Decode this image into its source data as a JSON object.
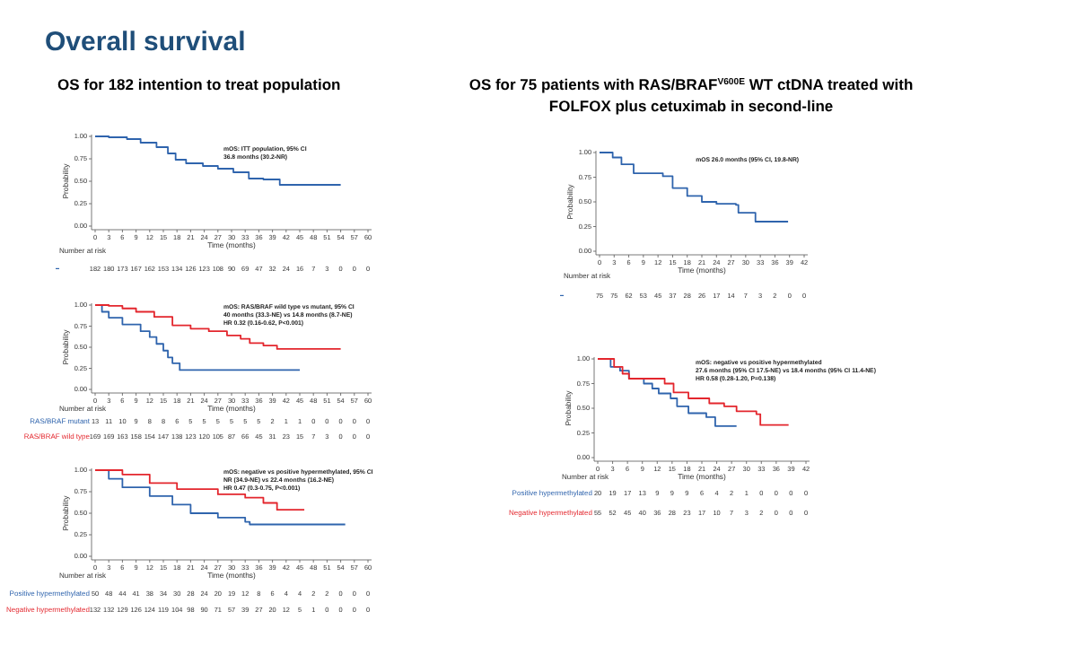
{
  "chart_data": [
    {
      "type": "step",
      "title": "Overall survival",
      "subtitle": "OS for 182 intention to treat population",
      "xlabel": "Time (months)",
      "ylabel": "Probability",
      "xlim": [
        0,
        60
      ],
      "xticks": [
        0,
        3,
        6,
        9,
        12,
        15,
        18,
        21,
        24,
        27,
        30,
        33,
        36,
        39,
        42,
        45,
        48,
        51,
        54,
        57,
        60
      ],
      "ylim": [
        0,
        1
      ],
      "yticks": [
        {
          "value": 0,
          "label": "0.00"
        },
        {
          "value": 0.25,
          "label": "0.25"
        },
        {
          "value": 0.5,
          "label": "0.50"
        },
        {
          "value": 0.75,
          "label": "0.75"
        },
        {
          "value": 1,
          "label": "1.00"
        }
      ],
      "grid": false,
      "legend": false,
      "series": [
        {
          "color": "#2f64ad",
          "x": [
            0,
            3,
            7,
            10,
            13.5,
            16,
            17.7,
            20,
            23.7,
            27,
            30.4,
            33.8,
            37,
            40.6,
            54
          ],
          "values": [
            1,
            0.99,
            0.97,
            0.93,
            0.88,
            0.81,
            0.74,
            0.7,
            0.67,
            0.64,
            0.6,
            0.53,
            0.52,
            0.46,
            0.46
          ]
        }
      ],
      "annotations": [
        "mOS: ITT population, 95% CI",
        "36.8 months (30.2-NR)",
        "Number at risk",
        "182 180 173 167 162 153 134 126 123 108 90 69 47 32 24 16 7 3 0 0 0"
      ]
    },
    {
      "type": "step",
      "xlabel": "Time (months)",
      "ylabel": "Probability",
      "xlim": [
        0,
        60
      ],
      "xticks": [
        0,
        3,
        6,
        9,
        12,
        15,
        18,
        21,
        24,
        27,
        30,
        33,
        36,
        39,
        42,
        45,
        48,
        51,
        54,
        57,
        60
      ],
      "ylim": [
        0,
        1
      ],
      "yticks": [
        {
          "value": 0,
          "label": "0.00"
        },
        {
          "value": 0.25,
          "label": "0.25"
        },
        {
          "value": 0.5,
          "label": "0.50"
        },
        {
          "value": 0.75,
          "label": "0.75"
        },
        {
          "value": 1,
          "label": "1.00"
        }
      ],
      "grid": false,
      "legend": false,
      "series": [
        {
          "name": "RAS/BRAF mutant",
          "color": "#2f64ad",
          "x": [
            0,
            1.5,
            3,
            6,
            10,
            12,
            13.5,
            15,
            16,
            17,
            18.6,
            45
          ],
          "values": [
            1,
            0.92,
            0.85,
            0.77,
            0.69,
            0.62,
            0.54,
            0.46,
            0.38,
            0.31,
            0.23,
            0.23
          ]
        },
        {
          "name": "RAS/BRAF wild type",
          "color": "#e3262d",
          "x": [
            0,
            3,
            6,
            9,
            13,
            17,
            21,
            25,
            29,
            32,
            34,
            37,
            40,
            54
          ],
          "values": [
            1,
            0.99,
            0.96,
            0.92,
            0.86,
            0.76,
            0.72,
            0.69,
            0.64,
            0.6,
            0.55,
            0.52,
            0.48,
            0.48
          ]
        }
      ],
      "annotations": [
        "mOS: RAS/BRAF wild type vs mutant, 95% CI",
        "40 months (33.3-NE) vs 14.8 months (8.7-NE)",
        "HR 0.32 (0.16-0.62, P<0.001)",
        "Number at risk",
        "13 11 10 9 8 8 6 5 5 5 5 5 5 2 1 1 0 0 0 0 0",
        "169 169 163 158 154 147 138 123 120 105 87 66 45 31 23 15 7 3 0 0 0"
      ]
    },
    {
      "type": "step",
      "xlabel": "Time (months)",
      "ylabel": "Probability",
      "xlim": [
        0,
        60
      ],
      "xticks": [
        0,
        3,
        6,
        9,
        12,
        15,
        18,
        21,
        24,
        27,
        30,
        33,
        36,
        39,
        42,
        45,
        48,
        51,
        54,
        57,
        60
      ],
      "ylim": [
        0,
        1
      ],
      "yticks": [
        {
          "value": 0,
          "label": "0.00"
        },
        {
          "value": 0.25,
          "label": "0.25"
        },
        {
          "value": 0.5,
          "label": "0.50"
        },
        {
          "value": 0.75,
          "label": "0.75"
        },
        {
          "value": 1,
          "label": "1.00"
        }
      ],
      "grid": false,
      "legend": false,
      "series": [
        {
          "name": "Positive hypermethylated",
          "color": "#2f64ad",
          "x": [
            0,
            3,
            6,
            12,
            17,
            21,
            27,
            33,
            34,
            55
          ],
          "values": [
            1,
            0.9,
            0.8,
            0.7,
            0.6,
            0.5,
            0.45,
            0.4,
            0.37,
            0.37
          ]
        },
        {
          "name": "Negative hypermethylated",
          "color": "#e3262d",
          "x": [
            0,
            6,
            12,
            18,
            27,
            33,
            37,
            40,
            46
          ],
          "values": [
            1,
            0.95,
            0.85,
            0.78,
            0.72,
            0.68,
            0.62,
            0.54,
            0.54
          ]
        }
      ],
      "annotations": [
        "mOS: negative vs positive hypermethylated, 95% CI",
        "NR (34.9-NE) vs 22.4 months (16.2-NE)",
        "HR 0.47 (0.3-0.75, P<0.001)",
        "Number at risk",
        "50 48 44 41 38 34 30 28 24 20 19 12 8 6 4 4 2 2 0 0 0",
        "132 132 129 126 124 119 104 98 90 71 57 39 27 20 12 5 1 0 0 0 0"
      ]
    },
    {
      "type": "step",
      "subtitle": "OS for 75 patients with RAS/BRAF$^{V600E}$ WT ctDNA treated with FOLFOX plus cetuximab in second-line",
      "xlabel": "Time (months)",
      "ylabel": "Probability",
      "xlim": [
        0,
        42
      ],
      "xticks": [
        0,
        3,
        6,
        9,
        12,
        15,
        18,
        21,
        24,
        27,
        30,
        33,
        36,
        39,
        42
      ],
      "ylim": [
        0,
        1
      ],
      "yticks": [
        {
          "value": 0,
          "label": "0.00"
        },
        {
          "value": 0.25,
          "label": "0.25"
        },
        {
          "value": 0.5,
          "label": "0.50"
        },
        {
          "value": 0.75,
          "label": "0.75"
        },
        {
          "value": 1,
          "label": "1.00"
        }
      ],
      "grid": false,
      "legend": false,
      "series": [
        {
          "color": "#2f64ad",
          "x": [
            0,
            1.8,
            2.7,
            4.5,
            7,
            10.7,
            13,
            15,
            18,
            21,
            24,
            28,
            28.5,
            32,
            38.7
          ],
          "values": [
            1,
            1,
            0.95,
            0.88,
            0.79,
            0.79,
            0.76,
            0.64,
            0.56,
            0.5,
            0.48,
            0.47,
            0.39,
            0.3,
            0.3
          ]
        }
      ],
      "annotations": [
        "mOS 26.0 months (95% CI, 19.8-NR)",
        "Number at risk",
        "75 75 62 53 45 37 28 26 17 14 7 3 2 0 0"
      ]
    },
    {
      "type": "step",
      "xlabel": "Time (months)",
      "ylabel": "Probability",
      "xlim": [
        0,
        42
      ],
      "xticks": [
        0,
        3,
        6,
        9,
        12,
        15,
        18,
        21,
        24,
        27,
        30,
        33,
        36,
        39,
        42
      ],
      "ylim": [
        0,
        1
      ],
      "yticks": [
        {
          "value": 0,
          "label": "0.00"
        },
        {
          "value": 0.25,
          "label": "0.25"
        },
        {
          "value": 0.5,
          "label": "0.50"
        },
        {
          "value": 0.75,
          "label": "0.75"
        },
        {
          "value": 1,
          "label": "1.00"
        }
      ],
      "grid": false,
      "legend": false,
      "series": [
        {
          "name": "Positive hypermethylated",
          "color": "#2f64ad",
          "x": [
            0,
            1.4,
            2.6,
            4.5,
            6.3,
            9.3,
            11,
            12.3,
            14.7,
            16,
            18.3,
            21.9,
            23.7,
            28
          ],
          "values": [
            1,
            1,
            0.92,
            0.88,
            0.8,
            0.75,
            0.7,
            0.65,
            0.6,
            0.52,
            0.45,
            0.41,
            0.32,
            0.32
          ]
        },
        {
          "name": "Negative hypermethylated",
          "color": "#e3262d",
          "x": [
            0,
            2,
            3.3,
            5,
            6.3,
            11,
            13.5,
            15.3,
            18.3,
            22.5,
            25.5,
            28,
            32,
            32.8,
            38.5
          ],
          "values": [
            1,
            1,
            0.92,
            0.85,
            0.8,
            0.8,
            0.75,
            0.66,
            0.6,
            0.55,
            0.52,
            0.47,
            0.44,
            0.33,
            0.33
          ]
        }
      ],
      "annotations": [
        "mOS: negative vs positive hypermethylated",
        "27.6 months (95% CI 17.5-NE) vs 18.4 months (95% CI 11.4-NE)",
        "HR 0.58 (0.28-1.20, P=0.138)",
        "Number at risk",
        "20 19 17 13 9 9 9 6 4 2 1 0 0 0 0",
        "55 52 45 40 36 28 23 17 10 7 3 2 0 0 0"
      ]
    }
  ]
}
